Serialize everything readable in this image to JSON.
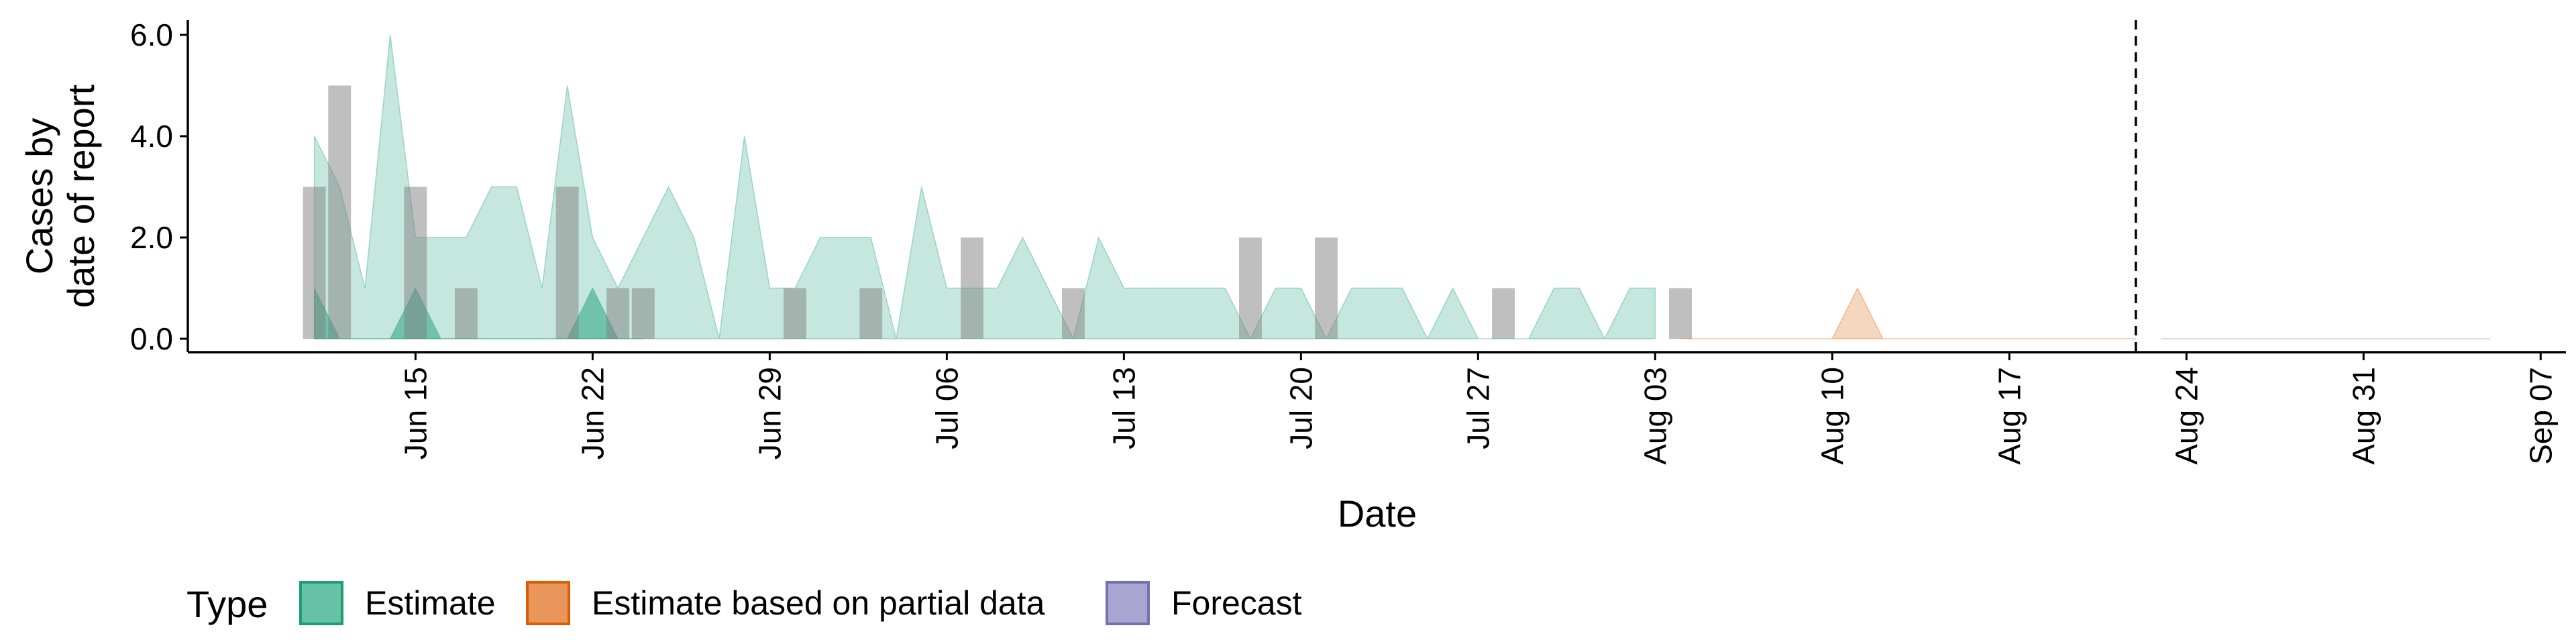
{
  "chart_data": {
    "type": "area",
    "xlabel": "Date",
    "ylabel_lines": [
      "Cases by",
      "date of report"
    ],
    "ylim": [
      0,
      6.0
    ],
    "y_ticks": [
      "0.0",
      "2.0",
      "4.0",
      "6.0"
    ],
    "x_range": [
      "2020-06-06",
      "2020-09-08"
    ],
    "x_ticks": [
      {
        "date": "2020-06-15",
        "label": "Jun 15"
      },
      {
        "date": "2020-06-22",
        "label": "Jun 22"
      },
      {
        "date": "2020-06-29",
        "label": "Jun 29"
      },
      {
        "date": "2020-07-06",
        "label": "Jul 06"
      },
      {
        "date": "2020-07-13",
        "label": "Jul 13"
      },
      {
        "date": "2020-07-20",
        "label": "Jul 20"
      },
      {
        "date": "2020-07-27",
        "label": "Jul 27"
      },
      {
        "date": "2020-08-03",
        "label": "Aug 03"
      },
      {
        "date": "2020-08-10",
        "label": "Aug 10"
      },
      {
        "date": "2020-08-17",
        "label": "Aug 17"
      },
      {
        "date": "2020-08-24",
        "label": "Aug 24"
      },
      {
        "date": "2020-08-31",
        "label": "Aug 31"
      },
      {
        "date": "2020-09-07",
        "label": "Sep 07"
      }
    ],
    "vline_date": "2020-08-22",
    "legend": {
      "title": "Type",
      "position": "bottom",
      "items": [
        {
          "label": "Estimate",
          "fill": "#66c2a5",
          "stroke": "#1b9e77"
        },
        {
          "label": "Estimate based on partial data",
          "fill": "#e8965a",
          "stroke": "#d95f02"
        },
        {
          "label": "Forecast",
          "fill": "#a9a5d1",
          "stroke": "#7570b3"
        }
      ]
    },
    "colors": {
      "estimate_outer": "#1b9e77",
      "estimate_inner": "#1b9e77",
      "partial_outer": "#d95f02",
      "forecast_outer": "#7570b3",
      "observed_bars": "#808080"
    },
    "series": [
      {
        "name": "Estimate",
        "role": "outer_band",
        "x": [
          "2020-06-11",
          "2020-06-12",
          "2020-06-13",
          "2020-06-14",
          "2020-06-15",
          "2020-06-16",
          "2020-06-17",
          "2020-06-18",
          "2020-06-19",
          "2020-06-20",
          "2020-06-21",
          "2020-06-22",
          "2020-06-23",
          "2020-06-24",
          "2020-06-25",
          "2020-06-26",
          "2020-06-27",
          "2020-06-28",
          "2020-06-29",
          "2020-06-30",
          "2020-07-01",
          "2020-07-02",
          "2020-07-03",
          "2020-07-04",
          "2020-07-05",
          "2020-07-06",
          "2020-07-07",
          "2020-07-08",
          "2020-07-09",
          "2020-07-10",
          "2020-07-11",
          "2020-07-12",
          "2020-07-13",
          "2020-07-14",
          "2020-07-15",
          "2020-07-16",
          "2020-07-17",
          "2020-07-18",
          "2020-07-19",
          "2020-07-20",
          "2020-07-21",
          "2020-07-22",
          "2020-07-23",
          "2020-07-24",
          "2020-07-25",
          "2020-07-26",
          "2020-07-27",
          "2020-07-28",
          "2020-07-29",
          "2020-07-30",
          "2020-07-31",
          "2020-08-01",
          "2020-08-02",
          "2020-08-03"
        ],
        "upper": [
          4,
          3,
          1,
          6,
          2,
          2,
          2,
          3,
          3,
          1,
          5,
          2,
          1,
          2,
          3,
          2,
          0,
          4,
          1,
          1,
          2,
          2,
          2,
          0,
          3,
          1,
          1,
          1,
          2,
          1,
          0,
          2,
          1,
          1,
          1,
          1,
          1,
          0,
          1,
          1,
          0,
          1,
          1,
          1,
          0,
          1,
          0,
          0,
          0,
          1,
          1,
          0,
          1,
          1
        ],
        "lower": [
          0,
          0,
          0,
          0,
          0,
          0,
          0,
          0,
          0,
          0,
          0,
          0,
          0,
          0,
          0,
          0,
          0,
          0,
          0,
          0,
          0,
          0,
          0,
          0,
          0,
          0,
          0,
          0,
          0,
          0,
          0,
          0,
          0,
          0,
          0,
          0,
          0,
          0,
          0,
          0,
          0,
          0,
          0,
          0,
          0,
          0,
          0,
          0,
          0,
          0,
          0,
          0,
          0,
          0
        ]
      },
      {
        "name": "Estimate",
        "role": "inner_band",
        "x": [
          "2020-06-11",
          "2020-06-12",
          "2020-06-13",
          "2020-06-14",
          "2020-06-15",
          "2020-06-16",
          "2020-06-17",
          "2020-06-18",
          "2020-06-19",
          "2020-06-20",
          "2020-06-21",
          "2020-06-22",
          "2020-06-23",
          "2020-06-24"
        ],
        "upper": [
          1,
          0,
          0,
          0,
          1,
          0,
          0,
          0,
          0,
          0,
          0,
          1,
          0,
          0
        ],
        "lower": [
          0,
          0,
          0,
          0,
          0,
          0,
          0,
          0,
          0,
          0,
          0,
          0,
          0,
          0
        ]
      },
      {
        "name": "Estimate based on partial data",
        "role": "outer_band",
        "x": [
          "2020-08-04",
          "2020-08-05",
          "2020-08-06",
          "2020-08-07",
          "2020-08-08",
          "2020-08-09",
          "2020-08-10",
          "2020-08-11",
          "2020-08-12",
          "2020-08-13",
          "2020-08-14",
          "2020-08-15",
          "2020-08-16",
          "2020-08-17",
          "2020-08-18",
          "2020-08-19",
          "2020-08-20",
          "2020-08-21",
          "2020-08-22"
        ],
        "upper": [
          0,
          0,
          0,
          0,
          0,
          0,
          0,
          1,
          0,
          0,
          0,
          0,
          0,
          0,
          0,
          0,
          0,
          0,
          0
        ],
        "lower": [
          0,
          0,
          0,
          0,
          0,
          0,
          0,
          0,
          0,
          0,
          0,
          0,
          0,
          0,
          0,
          0,
          0,
          0,
          0
        ]
      },
      {
        "name": "Forecast",
        "role": "outer_band",
        "x": [
          "2020-08-23",
          "2020-09-05"
        ],
        "upper": [
          0,
          0
        ],
        "lower": [
          0,
          0
        ]
      }
    ],
    "bars": {
      "x": [
        "2020-06-11",
        "2020-06-12",
        "2020-06-15",
        "2020-06-17",
        "2020-06-21",
        "2020-06-23",
        "2020-06-24",
        "2020-06-30",
        "2020-07-03",
        "2020-07-07",
        "2020-07-11",
        "2020-07-18",
        "2020-07-21",
        "2020-07-28",
        "2020-08-04"
      ],
      "values": [
        3,
        5,
        3,
        1,
        3,
        1,
        1,
        1,
        1,
        2,
        1,
        2,
        2,
        1,
        1
      ]
    }
  }
}
